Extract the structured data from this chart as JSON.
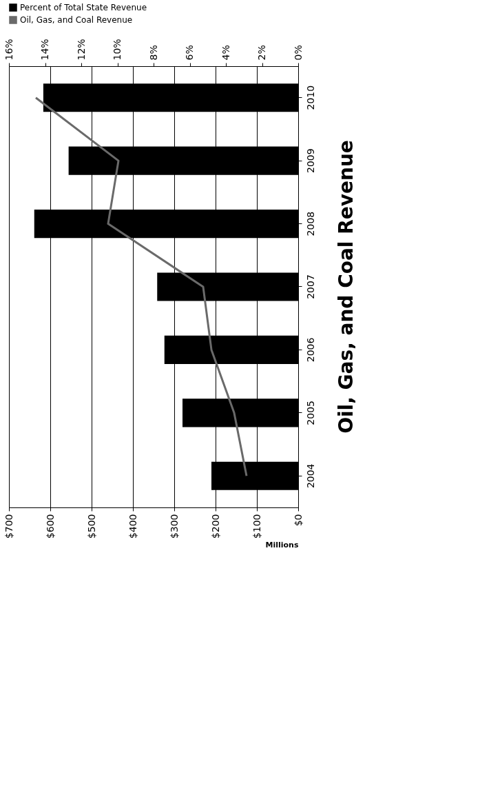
{
  "chart_data": {
    "type": "bar",
    "orientation": "horizontal",
    "title": "Oil, Gas, and Coal Revenue",
    "xlabel": "Millions",
    "categories": [
      "2010",
      "2009",
      "2008",
      "2007",
      "2006",
      "2005",
      "2004"
    ],
    "series": [
      {
        "name": "Percent of Total State Revenue",
        "color": "#000000",
        "axis": "x2",
        "values": [
          14.1,
          12.7,
          14.6,
          7.8,
          7.4,
          6.4,
          4.8
        ]
      },
      {
        "name": "Oil, Gas, and Coal Revenue",
        "type": "line",
        "color": "#6a6a6a",
        "values": [
          635,
          435,
          460,
          230,
          210,
          155,
          125
        ]
      }
    ],
    "xlim": [
      700,
      0
    ],
    "xticks": [
      {
        "value": 700,
        "label": "$700"
      },
      {
        "value": 600,
        "label": "$600"
      },
      {
        "value": 500,
        "label": "$500"
      },
      {
        "value": 400,
        "label": "$400"
      },
      {
        "value": 300,
        "label": "$300"
      },
      {
        "value": 200,
        "label": "$200"
      },
      {
        "value": 100,
        "label": "$100"
      },
      {
        "value": 0,
        "label": "$0"
      }
    ],
    "x2lim": [
      16,
      0
    ],
    "x2ticks": [
      {
        "value": 16,
        "label": "16%"
      },
      {
        "value": 14,
        "label": "14%"
      },
      {
        "value": 12,
        "label": "12%"
      },
      {
        "value": 10,
        "label": "10%"
      },
      {
        "value": 8,
        "label": "8%"
      },
      {
        "value": 6,
        "label": "6%"
      },
      {
        "value": 4,
        "label": "4%"
      },
      {
        "value": 2,
        "label": "2%"
      },
      {
        "value": 0,
        "label": "0%"
      }
    ],
    "grid": "x",
    "legend": "top"
  }
}
